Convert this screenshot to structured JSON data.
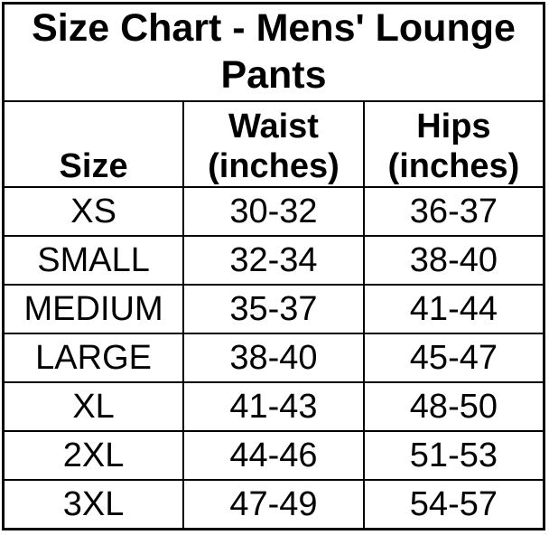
{
  "chart_data": {
    "type": "table",
    "title": "Size Chart - Mens' Lounge Pants",
    "columns": [
      "Size",
      "Waist (inches)",
      "Hips (inches)"
    ],
    "rows": [
      [
        "XS",
        "30-32",
        "36-37"
      ],
      [
        "SMALL",
        "32-34",
        "38-40"
      ],
      [
        "MEDIUM",
        "35-37",
        "41-44"
      ],
      [
        "LARGE",
        "38-40",
        "45-47"
      ],
      [
        "XL",
        "41-43",
        "48-50"
      ],
      [
        "2XL",
        "44-46",
        "51-53"
      ],
      [
        "3XL",
        "47-49",
        "54-57"
      ]
    ],
    "layout_hints": {
      "title_position": "top-spanning-row",
      "grid": "on",
      "text_align": "center"
    }
  },
  "colors": {
    "background": "#ffffff",
    "border": "#000000",
    "text": "#000000"
  }
}
